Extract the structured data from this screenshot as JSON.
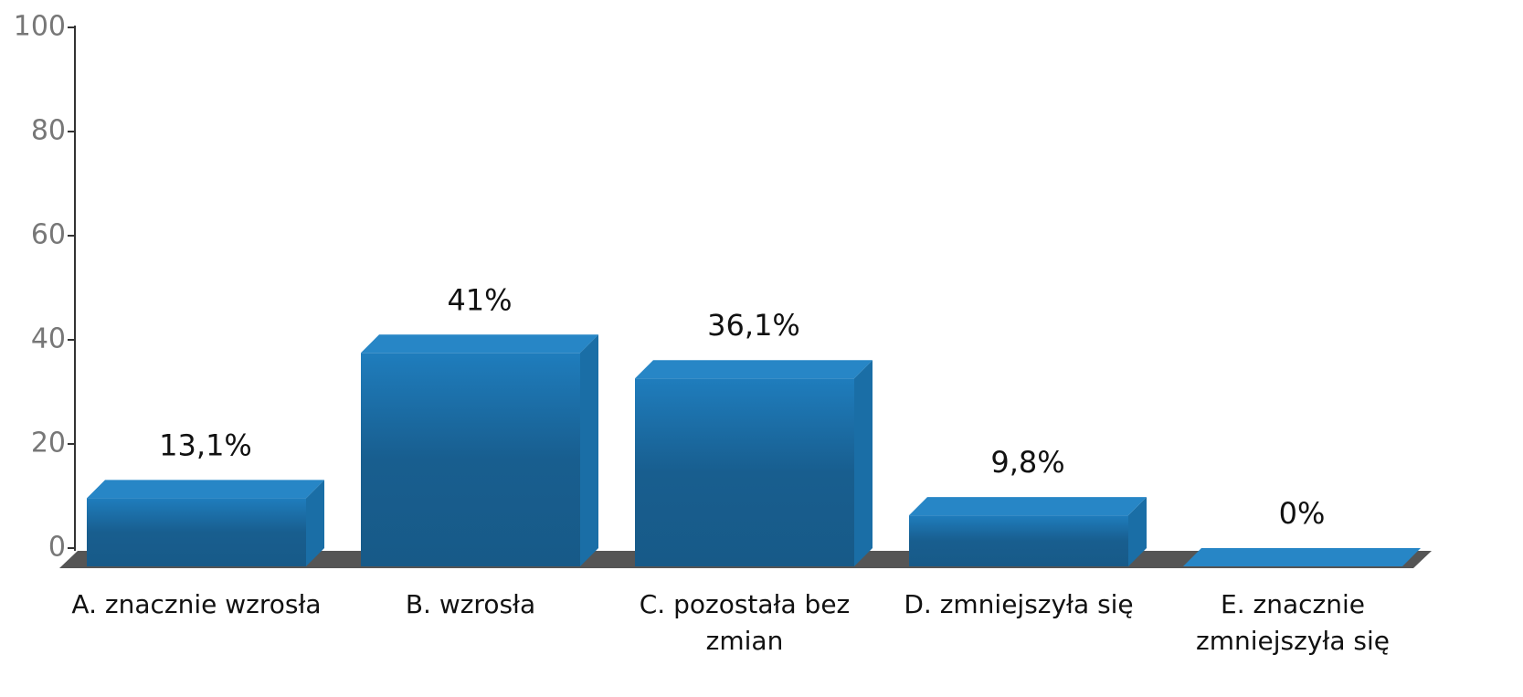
{
  "chart_data": {
    "type": "bar",
    "categories": [
      "A. znacznie wzrosła",
      "B. wzrosła",
      "C. pozostała bez zmian",
      "D. zmniejszyła się",
      "E. znacznie zmniejszyła się"
    ],
    "values": [
      13.1,
      41,
      36.1,
      9.8,
      0
    ],
    "value_labels": [
      "13,1%",
      "41%",
      "36,1%",
      "9,8%",
      "0%"
    ],
    "color": "#1b6aa0",
    "ylim": [
      0,
      100
    ],
    "yticks": [
      0,
      20,
      40,
      60,
      80,
      100
    ]
  }
}
